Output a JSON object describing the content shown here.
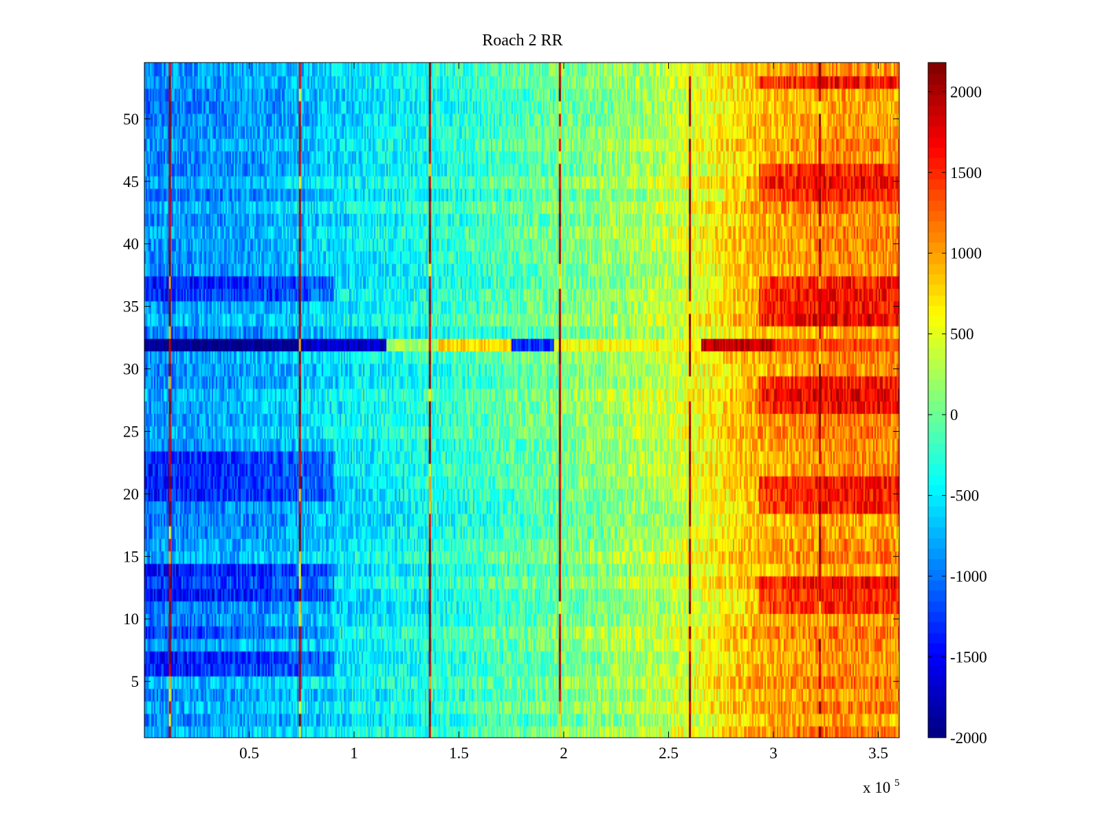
{
  "chart_data": {
    "type": "heatmap",
    "title": "Roach 2 RR",
    "xlabel": "",
    "ylabel": "",
    "x_multiplier_label": "x 10",
    "x_multiplier_exponent": "5",
    "xlim": [
      0,
      360000
    ],
    "ylim": [
      0.5,
      54.5
    ],
    "x_ticks": [
      {
        "value": 50000,
        "label": "0.5"
      },
      {
        "value": 100000,
        "label": "1"
      },
      {
        "value": 150000,
        "label": "1.5"
      },
      {
        "value": 200000,
        "label": "2"
      },
      {
        "value": 250000,
        "label": "2.5"
      },
      {
        "value": 300000,
        "label": "3"
      },
      {
        "value": 350000,
        "label": "3.5"
      }
    ],
    "y_ticks": [
      {
        "value": 5,
        "label": "5"
      },
      {
        "value": 10,
        "label": "10"
      },
      {
        "value": 15,
        "label": "15"
      },
      {
        "value": 20,
        "label": "20"
      },
      {
        "value": 25,
        "label": "25"
      },
      {
        "value": 30,
        "label": "30"
      },
      {
        "value": 35,
        "label": "35"
      },
      {
        "value": 40,
        "label": "40"
      },
      {
        "value": 45,
        "label": "45"
      },
      {
        "value": 50,
        "label": "50"
      }
    ],
    "colorbar": {
      "range": [
        -2000,
        2180
      ],
      "colormap": "jet",
      "ticks": [
        {
          "value": 2000,
          "label": "2000"
        },
        {
          "value": 1500,
          "label": "1500"
        },
        {
          "value": 1000,
          "label": "1000"
        },
        {
          "value": 500,
          "label": "500"
        },
        {
          "value": 0,
          "label": "0"
        },
        {
          "value": -500,
          "label": "-500"
        },
        {
          "value": -1000,
          "label": "-1000"
        },
        {
          "value": -1500,
          "label": "-1500"
        },
        {
          "value": -2000,
          "label": "-2000"
        }
      ]
    },
    "rows": 54,
    "trend": {
      "description_points_x": [
        0,
        60000,
        100000,
        150000,
        200000,
        250000,
        290000,
        330000,
        360000
      ],
      "values": [
        -900,
        -750,
        -500,
        -250,
        50,
        350,
        900,
        1100,
        1050
      ]
    },
    "vertical_lines_x": [
      12000,
      74000,
      136000,
      198000,
      260000,
      322000
    ],
    "vertical_line_value": 2000,
    "anomalous_row": {
      "row": 32,
      "segments": [
        {
          "x": [
            0,
            75000
          ],
          "value": -1950
        },
        {
          "x": [
            75000,
            115000
          ],
          "value": -1700
        },
        {
          "x": [
            115000,
            140000
          ],
          "value": 200
        },
        {
          "x": [
            140000,
            175000
          ],
          "value": 800
        },
        {
          "x": [
            175000,
            195000
          ],
          "value": -1300
        },
        {
          "x": [
            195000,
            265000
          ],
          "value": 600
        },
        {
          "x": [
            265000,
            300000
          ],
          "value": 1900
        },
        {
          "x": [
            300000,
            360000
          ],
          "value": 1400
        }
      ]
    },
    "dark_blue_rows_early": [
      6,
      7,
      9,
      12,
      13,
      14,
      20,
      21,
      22,
      23,
      36,
      37
    ],
    "hot_rows_late": [
      11,
      12,
      13,
      19,
      20,
      21,
      27,
      28,
      29,
      34,
      35,
      36,
      37,
      44,
      45,
      46,
      53
    ]
  },
  "colors": {
    "background": "#ffffff",
    "axes_edge": "#000000"
  }
}
